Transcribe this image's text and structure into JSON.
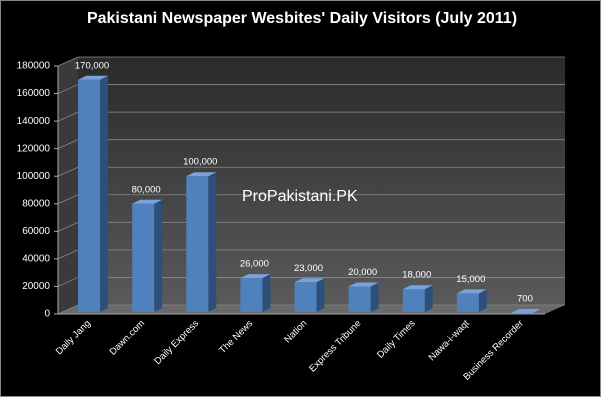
{
  "chart_data": {
    "type": "bar",
    "title": "Pakistani Newspaper Wesbites' Daily Visitors (July 2011)",
    "annotation": "ProPakistani.PK",
    "categories": [
      "Daily Jang",
      "Dawn.com",
      "Daily Express",
      "The News",
      "Nation",
      "Express Tribune",
      "Daily Times",
      "Nawa-i-waqt",
      "Business Recorder"
    ],
    "values": [
      170000,
      80000,
      100000,
      26000,
      23000,
      20000,
      18000,
      15000,
      700
    ],
    "value_labels": [
      "170,000",
      "80,000",
      "100,000",
      "26,000",
      "23,000",
      "20,000",
      "18,000",
      "15,000",
      "700"
    ],
    "color": "#4f81bd",
    "ylim": [
      0,
      180000
    ],
    "yticks": [
      0,
      20000,
      40000,
      60000,
      80000,
      100000,
      120000,
      140000,
      160000,
      180000
    ],
    "grid": true
  }
}
